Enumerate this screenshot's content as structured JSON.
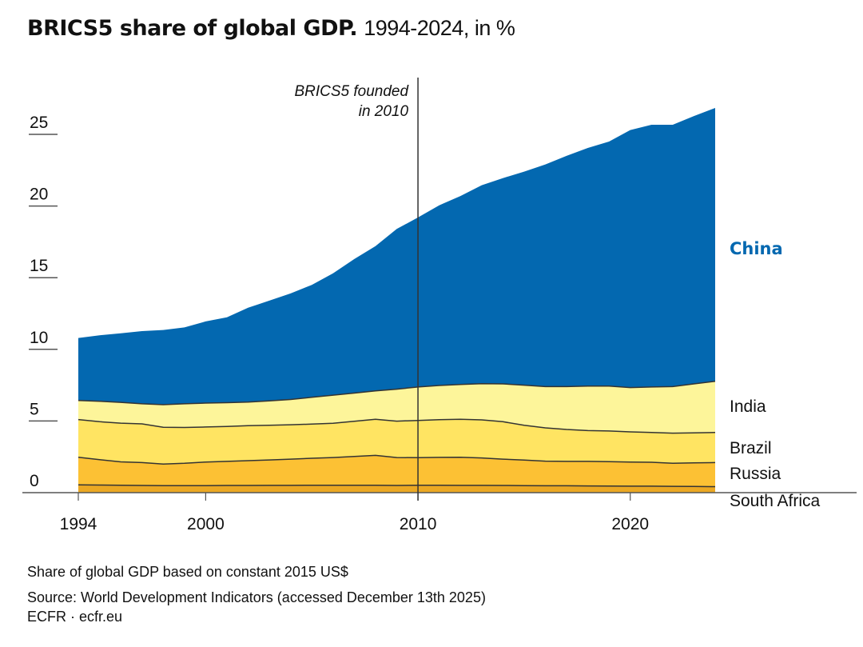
{
  "title": {
    "bold": "BRICS5 share of global GDP.",
    "light": "1994-2024, in %"
  },
  "chart_data": {
    "type": "area",
    "stacked": true,
    "title": "BRICS5 share of global GDP. 1994-2024, in %",
    "xlabel": "",
    "ylabel": "",
    "x": [
      1994,
      1995,
      1996,
      1997,
      1998,
      1999,
      2000,
      2001,
      2002,
      2003,
      2004,
      2005,
      2006,
      2007,
      2008,
      2009,
      2010,
      2011,
      2012,
      2013,
      2014,
      2015,
      2016,
      2017,
      2018,
      2019,
      2020,
      2021,
      2022,
      2023,
      2024
    ],
    "xlim": [
      1994,
      2024
    ],
    "ylim": [
      0,
      27
    ],
    "x_ticks": [
      1994,
      2000,
      2010,
      2020
    ],
    "y_ticks": [
      0,
      5,
      10,
      15,
      20,
      25
    ],
    "grid": false,
    "legend": "inline-right",
    "series": [
      {
        "name": "South Africa",
        "color": "#EBA823",
        "label_color": "#111111",
        "values": [
          0.54,
          0.53,
          0.52,
          0.5,
          0.49,
          0.49,
          0.49,
          0.5,
          0.5,
          0.51,
          0.51,
          0.52,
          0.52,
          0.52,
          0.52,
          0.5,
          0.52,
          0.52,
          0.51,
          0.51,
          0.5,
          0.49,
          0.48,
          0.48,
          0.47,
          0.46,
          0.45,
          0.45,
          0.44,
          0.43,
          0.42
        ]
      },
      {
        "name": "Russia",
        "color": "#FCC134",
        "label_color": "#111111",
        "values": [
          1.93,
          1.77,
          1.63,
          1.6,
          1.51,
          1.56,
          1.65,
          1.68,
          1.73,
          1.77,
          1.83,
          1.88,
          1.93,
          2.0,
          2.08,
          1.95,
          1.92,
          1.94,
          1.96,
          1.91,
          1.84,
          1.78,
          1.72,
          1.7,
          1.71,
          1.7,
          1.69,
          1.67,
          1.61,
          1.65,
          1.68
        ]
      },
      {
        "name": "Brazil",
        "color": "#FFE462",
        "label_color": "#111111",
        "values": [
          2.63,
          2.65,
          2.7,
          2.7,
          2.56,
          2.5,
          2.44,
          2.44,
          2.44,
          2.42,
          2.4,
          2.38,
          2.39,
          2.46,
          2.52,
          2.54,
          2.6,
          2.63,
          2.65,
          2.66,
          2.61,
          2.43,
          2.32,
          2.23,
          2.15,
          2.14,
          2.1,
          2.08,
          2.1,
          2.09,
          2.1
        ]
      },
      {
        "name": "India",
        "color": "#FDF59A",
        "label_color": "#111111",
        "values": [
          1.33,
          1.43,
          1.45,
          1.4,
          1.58,
          1.65,
          1.67,
          1.66,
          1.65,
          1.7,
          1.76,
          1.87,
          1.96,
          1.97,
          1.98,
          2.23,
          2.33,
          2.39,
          2.43,
          2.52,
          2.64,
          2.8,
          2.88,
          2.99,
          3.11,
          3.14,
          3.09,
          3.17,
          3.25,
          3.42,
          3.57
        ]
      },
      {
        "name": "China",
        "color": "#0368B0",
        "label_color": "#0368B0",
        "values": [
          4.36,
          4.6,
          4.82,
          5.07,
          5.21,
          5.33,
          5.7,
          5.96,
          6.58,
          7.0,
          7.4,
          7.85,
          8.5,
          9.35,
          10.1,
          11.18,
          11.83,
          12.57,
          13.15,
          13.85,
          14.36,
          14.9,
          15.5,
          16.1,
          16.61,
          17.06,
          17.97,
          18.3,
          18.27,
          18.69,
          19.07
        ]
      }
    ],
    "annotations": [
      {
        "x": 2010,
        "type": "vline",
        "text_lines": [
          "BRICS5 founded",
          "in 2010"
        ]
      }
    ]
  },
  "footer": {
    "note": "Share of global GDP based on constant 2015 US$",
    "source": "Source: World Development Indicators (accessed December 13th 2025)",
    "credit": "ECFR · ecfr.eu"
  }
}
